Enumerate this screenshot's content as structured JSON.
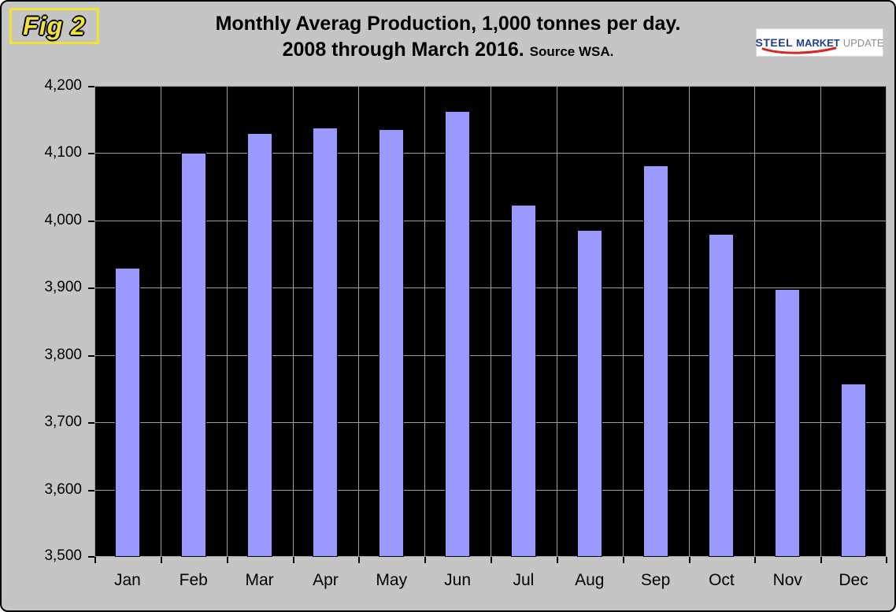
{
  "figure_label": "Fig 2",
  "header": {
    "title_line1": "Monthly Averag Production, 1,000 tonnes per day.",
    "title_line2": "2008 through March 2016.",
    "source_note": "Source WSA."
  },
  "logo": {
    "steel": "STEEL",
    "market": "MARKET",
    "update": "UPDATE"
  },
  "colors": {
    "page_bg": "#c5c5c5",
    "plot_bg": "#000000",
    "bar": "#9999fe",
    "bar_border": "#000000",
    "gridline": "#9e9e9e",
    "figure_label_yellow": "#f2e233",
    "logo_blue": "#1c3f94",
    "logo_gray": "#8e8e8e",
    "logo_red": "#d9251d"
  },
  "chart_data": {
    "type": "bar",
    "title": "Monthly Averag Production, 1,000 tonnes per day. 2008 through March 2016. Source WSA.",
    "categories": [
      "Jan",
      "Feb",
      "Mar",
      "Apr",
      "May",
      "Jun",
      "Jul",
      "Aug",
      "Sep",
      "Oct",
      "Nov",
      "Dec"
    ],
    "values": [
      3930,
      4101,
      4130,
      4138,
      4136,
      4162,
      4023,
      3986,
      4082,
      3980,
      3898,
      3757
    ],
    "xlabel": "",
    "ylabel": "",
    "ylim": [
      3500,
      4200
    ],
    "y_ticks": [
      3500,
      3600,
      3700,
      3800,
      3900,
      4000,
      4100,
      4200
    ],
    "grid": true,
    "legend_position": "none",
    "plot_background": "black",
    "bar_color": "#9999fe"
  }
}
